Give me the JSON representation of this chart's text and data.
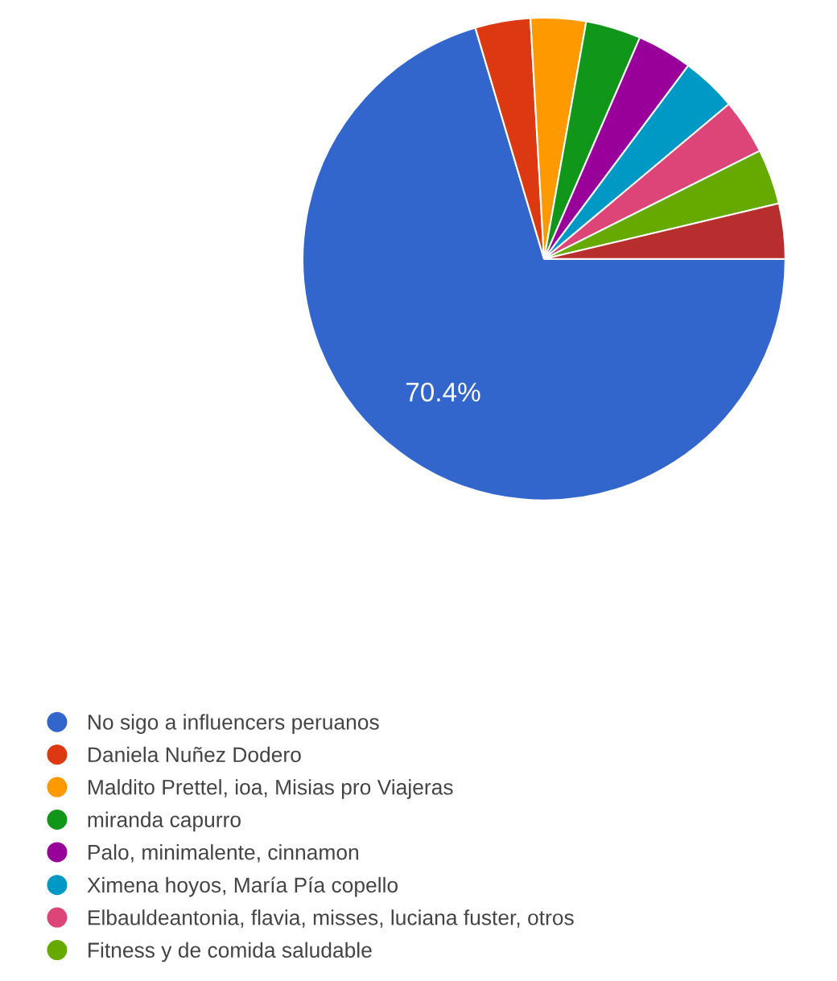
{
  "chart_data": {
    "type": "pie",
    "categories": [
      "No sigo a influencers peruanos",
      "Daniela Nuñez Dodero",
      "Maldito Prettel, ioa, Misias pro Viajeras",
      "miranda capurro",
      "Palo, minimalente, cinnamon",
      "Ximena hoyos, María Pía copello",
      "Elbauldeantonia, flavia, misses, luciana fuster, otros",
      "Fitness y de comida saludable",
      null
    ],
    "values": [
      70.4,
      3.7,
      3.7,
      3.7,
      3.7,
      3.7,
      3.7,
      3.7,
      3.7
    ],
    "colors": [
      "#3366cc",
      "#dc3912",
      "#ff9900",
      "#109618",
      "#990099",
      "#0099c6",
      "#dd4477",
      "#66aa00",
      "#b82e2e"
    ],
    "value_labels": [
      "70.4%",
      null,
      null,
      null,
      null,
      null,
      null,
      null,
      null
    ],
    "legend": "bottom left"
  }
}
